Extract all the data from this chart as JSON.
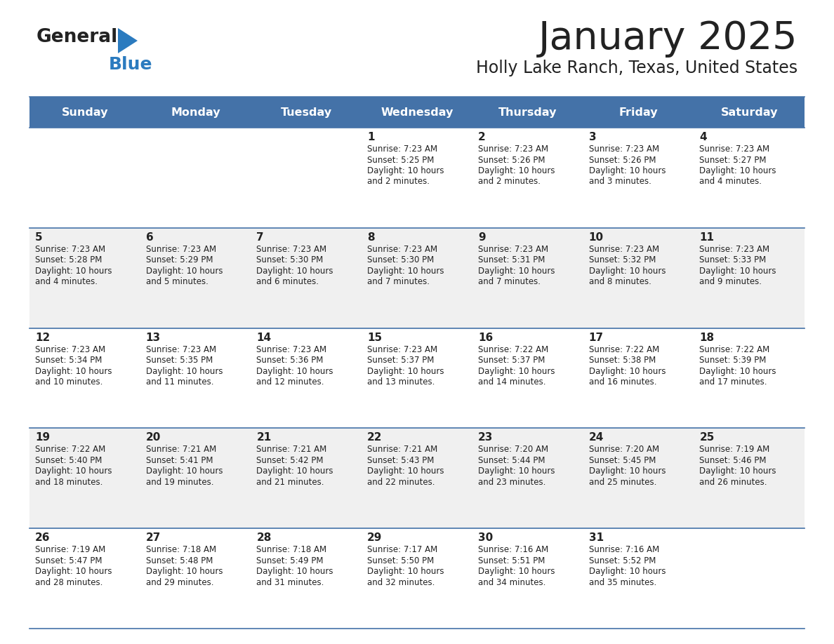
{
  "title": "January 2025",
  "subtitle": "Holly Lake Ranch, Texas, United States",
  "header_bg_color": "#4472a8",
  "header_text_color": "#ffffff",
  "days_of_week": [
    "Sunday",
    "Monday",
    "Tuesday",
    "Wednesday",
    "Thursday",
    "Friday",
    "Saturday"
  ],
  "row_bg_even": "#f0f0f0",
  "row_bg_odd": "#ffffff",
  "cell_border_color": "#4472a8",
  "day_num_color": "#222222",
  "info_text_color": "#222222",
  "title_color": "#222222",
  "subtitle_color": "#222222",
  "logo_general_color": "#222222",
  "logo_blue_color": "#2b7bbf",
  "calendar_data": [
    {
      "day": 1,
      "col": 3,
      "row": 0,
      "sunrise": "7:23 AM",
      "sunset": "5:25 PM",
      "daylight_hours": 10,
      "daylight_minutes": 2
    },
    {
      "day": 2,
      "col": 4,
      "row": 0,
      "sunrise": "7:23 AM",
      "sunset": "5:26 PM",
      "daylight_hours": 10,
      "daylight_minutes": 2
    },
    {
      "day": 3,
      "col": 5,
      "row": 0,
      "sunrise": "7:23 AM",
      "sunset": "5:26 PM",
      "daylight_hours": 10,
      "daylight_minutes": 3
    },
    {
      "day": 4,
      "col": 6,
      "row": 0,
      "sunrise": "7:23 AM",
      "sunset": "5:27 PM",
      "daylight_hours": 10,
      "daylight_minutes": 4
    },
    {
      "day": 5,
      "col": 0,
      "row": 1,
      "sunrise": "7:23 AM",
      "sunset": "5:28 PM",
      "daylight_hours": 10,
      "daylight_minutes": 4
    },
    {
      "day": 6,
      "col": 1,
      "row": 1,
      "sunrise": "7:23 AM",
      "sunset": "5:29 PM",
      "daylight_hours": 10,
      "daylight_minutes": 5
    },
    {
      "day": 7,
      "col": 2,
      "row": 1,
      "sunrise": "7:23 AM",
      "sunset": "5:30 PM",
      "daylight_hours": 10,
      "daylight_minutes": 6
    },
    {
      "day": 8,
      "col": 3,
      "row": 1,
      "sunrise": "7:23 AM",
      "sunset": "5:30 PM",
      "daylight_hours": 10,
      "daylight_minutes": 7
    },
    {
      "day": 9,
      "col": 4,
      "row": 1,
      "sunrise": "7:23 AM",
      "sunset": "5:31 PM",
      "daylight_hours": 10,
      "daylight_minutes": 7
    },
    {
      "day": 10,
      "col": 5,
      "row": 1,
      "sunrise": "7:23 AM",
      "sunset": "5:32 PM",
      "daylight_hours": 10,
      "daylight_minutes": 8
    },
    {
      "day": 11,
      "col": 6,
      "row": 1,
      "sunrise": "7:23 AM",
      "sunset": "5:33 PM",
      "daylight_hours": 10,
      "daylight_minutes": 9
    },
    {
      "day": 12,
      "col": 0,
      "row": 2,
      "sunrise": "7:23 AM",
      "sunset": "5:34 PM",
      "daylight_hours": 10,
      "daylight_minutes": 10
    },
    {
      "day": 13,
      "col": 1,
      "row": 2,
      "sunrise": "7:23 AM",
      "sunset": "5:35 PM",
      "daylight_hours": 10,
      "daylight_minutes": 11
    },
    {
      "day": 14,
      "col": 2,
      "row": 2,
      "sunrise": "7:23 AM",
      "sunset": "5:36 PM",
      "daylight_hours": 10,
      "daylight_minutes": 12
    },
    {
      "day": 15,
      "col": 3,
      "row": 2,
      "sunrise": "7:23 AM",
      "sunset": "5:37 PM",
      "daylight_hours": 10,
      "daylight_minutes": 13
    },
    {
      "day": 16,
      "col": 4,
      "row": 2,
      "sunrise": "7:22 AM",
      "sunset": "5:37 PM",
      "daylight_hours": 10,
      "daylight_minutes": 14
    },
    {
      "day": 17,
      "col": 5,
      "row": 2,
      "sunrise": "7:22 AM",
      "sunset": "5:38 PM",
      "daylight_hours": 10,
      "daylight_minutes": 16
    },
    {
      "day": 18,
      "col": 6,
      "row": 2,
      "sunrise": "7:22 AM",
      "sunset": "5:39 PM",
      "daylight_hours": 10,
      "daylight_minutes": 17
    },
    {
      "day": 19,
      "col": 0,
      "row": 3,
      "sunrise": "7:22 AM",
      "sunset": "5:40 PM",
      "daylight_hours": 10,
      "daylight_minutes": 18
    },
    {
      "day": 20,
      "col": 1,
      "row": 3,
      "sunrise": "7:21 AM",
      "sunset": "5:41 PM",
      "daylight_hours": 10,
      "daylight_minutes": 19
    },
    {
      "day": 21,
      "col": 2,
      "row": 3,
      "sunrise": "7:21 AM",
      "sunset": "5:42 PM",
      "daylight_hours": 10,
      "daylight_minutes": 21
    },
    {
      "day": 22,
      "col": 3,
      "row": 3,
      "sunrise": "7:21 AM",
      "sunset": "5:43 PM",
      "daylight_hours": 10,
      "daylight_minutes": 22
    },
    {
      "day": 23,
      "col": 4,
      "row": 3,
      "sunrise": "7:20 AM",
      "sunset": "5:44 PM",
      "daylight_hours": 10,
      "daylight_minutes": 23
    },
    {
      "day": 24,
      "col": 5,
      "row": 3,
      "sunrise": "7:20 AM",
      "sunset": "5:45 PM",
      "daylight_hours": 10,
      "daylight_minutes": 25
    },
    {
      "day": 25,
      "col": 6,
      "row": 3,
      "sunrise": "7:19 AM",
      "sunset": "5:46 PM",
      "daylight_hours": 10,
      "daylight_minutes": 26
    },
    {
      "day": 26,
      "col": 0,
      "row": 4,
      "sunrise": "7:19 AM",
      "sunset": "5:47 PM",
      "daylight_hours": 10,
      "daylight_minutes": 28
    },
    {
      "day": 27,
      "col": 1,
      "row": 4,
      "sunrise": "7:18 AM",
      "sunset": "5:48 PM",
      "daylight_hours": 10,
      "daylight_minutes": 29
    },
    {
      "day": 28,
      "col": 2,
      "row": 4,
      "sunrise": "7:18 AM",
      "sunset": "5:49 PM",
      "daylight_hours": 10,
      "daylight_minutes": 31
    },
    {
      "day": 29,
      "col": 3,
      "row": 4,
      "sunrise": "7:17 AM",
      "sunset": "5:50 PM",
      "daylight_hours": 10,
      "daylight_minutes": 32
    },
    {
      "day": 30,
      "col": 4,
      "row": 4,
      "sunrise": "7:16 AM",
      "sunset": "5:51 PM",
      "daylight_hours": 10,
      "daylight_minutes": 34
    },
    {
      "day": 31,
      "col": 5,
      "row": 4,
      "sunrise": "7:16 AM",
      "sunset": "5:52 PM",
      "daylight_hours": 10,
      "daylight_minutes": 35
    }
  ]
}
